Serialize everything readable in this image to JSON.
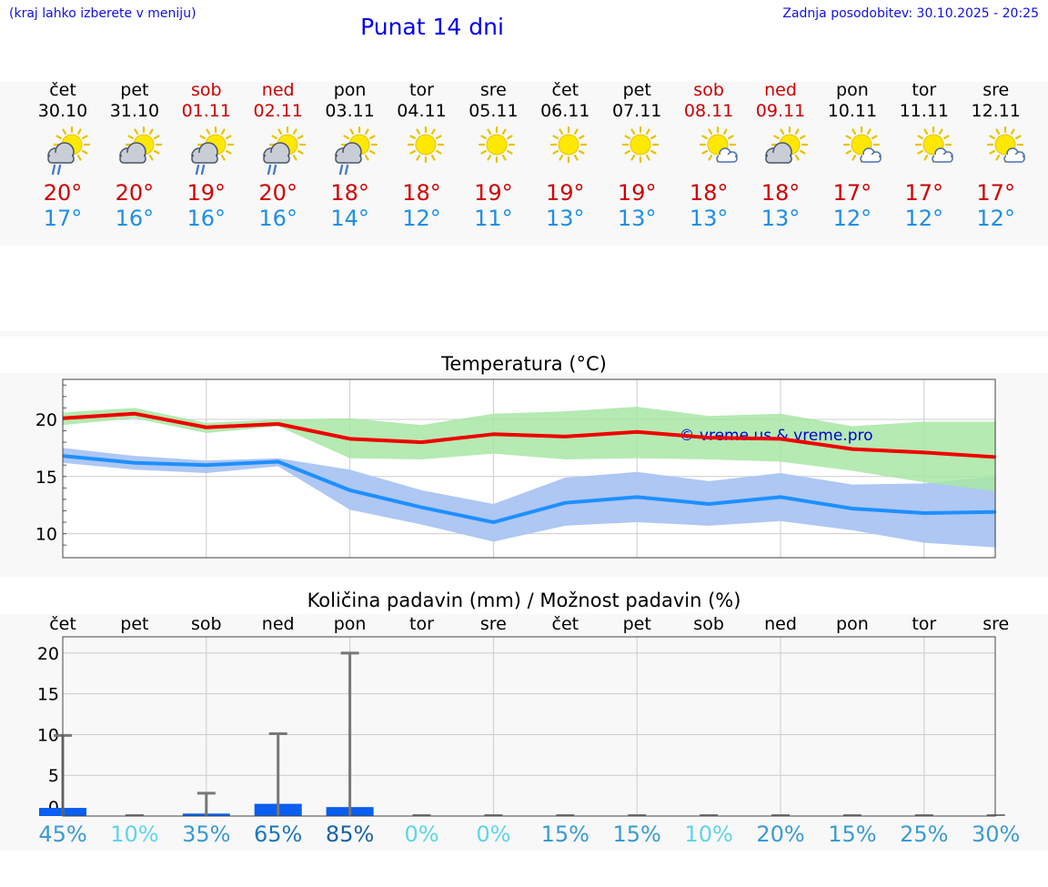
{
  "header": {
    "hint": "(kraj lahko izberete v meniju)",
    "title": "Punat 14 dni",
    "updated": "Zadnja posodobitev: 30.10.2025 - 20:25"
  },
  "colors": {
    "max": "#d00000",
    "min": "#1e8fe6",
    "weekend": "#cc0000",
    "rain_bar": "#0a5ef0",
    "max_band": "#a8e6a4",
    "min_band": "#aac4f2"
  },
  "forecast": [
    {
      "day": "čet",
      "date": "30.10",
      "weekend": false,
      "icon": "sun-cloud-rain-icon",
      "max": "20°",
      "min": "17°"
    },
    {
      "day": "pet",
      "date": "31.10",
      "weekend": false,
      "icon": "sun-cloud-icon",
      "max": "20°",
      "min": "16°"
    },
    {
      "day": "sob",
      "date": "01.11",
      "weekend": true,
      "icon": "sun-cloud-rain-icon",
      "max": "19°",
      "min": "16°"
    },
    {
      "day": "ned",
      "date": "02.11",
      "weekend": true,
      "icon": "sun-cloud-rain-icon",
      "max": "20°",
      "min": "16°"
    },
    {
      "day": "pon",
      "date": "03.11",
      "weekend": false,
      "icon": "sun-cloud-rain-icon",
      "max": "18°",
      "min": "14°"
    },
    {
      "day": "tor",
      "date": "04.11",
      "weekend": false,
      "icon": "sun-icon",
      "max": "18°",
      "min": "12°"
    },
    {
      "day": "sre",
      "date": "05.11",
      "weekend": false,
      "icon": "sun-icon",
      "max": "19°",
      "min": "11°"
    },
    {
      "day": "čet",
      "date": "06.11",
      "weekend": false,
      "icon": "sun-icon",
      "max": "19°",
      "min": "13°"
    },
    {
      "day": "pet",
      "date": "07.11",
      "weekend": false,
      "icon": "sun-icon",
      "max": "19°",
      "min": "13°"
    },
    {
      "day": "sob",
      "date": "08.11",
      "weekend": true,
      "icon": "sun-small-cloud-icon",
      "max": "18°",
      "min": "13°"
    },
    {
      "day": "ned",
      "date": "09.11",
      "weekend": true,
      "icon": "sun-cloud-icon",
      "max": "18°",
      "min": "13°"
    },
    {
      "day": "pon",
      "date": "10.11",
      "weekend": false,
      "icon": "sun-small-cloud-icon",
      "max": "17°",
      "min": "12°"
    },
    {
      "day": "tor",
      "date": "11.11",
      "weekend": false,
      "icon": "sun-small-cloud-icon",
      "max": "17°",
      "min": "12°"
    },
    {
      "day": "sre",
      "date": "12.11",
      "weekend": false,
      "icon": "sun-small-cloud-icon",
      "max": "17°",
      "min": "12°"
    }
  ],
  "chart_data": [
    {
      "type": "line",
      "title": "Temperatura (°C)",
      "watermark": "© vreme.us & vreme.pro",
      "x": [
        0,
        1,
        2,
        3,
        4,
        5,
        6,
        7,
        8,
        9,
        10,
        11,
        12,
        13
      ],
      "ylim": [
        7.9,
        23.5
      ],
      "yticks": [
        10,
        15,
        20
      ],
      "grid": true,
      "series": [
        {
          "name": "max",
          "color": "#ee0000",
          "values": [
            20.1,
            20.5,
            19.3,
            19.6,
            18.3,
            18.0,
            18.7,
            18.5,
            18.9,
            18.4,
            18.3,
            17.4,
            17.1,
            16.7
          ],
          "band_low": [
            19.5,
            20.1,
            18.8,
            19.4,
            16.6,
            16.5,
            17.0,
            16.5,
            16.6,
            16.5,
            16.3,
            15.5,
            14.5,
            13.7
          ],
          "band_high": [
            20.6,
            21.0,
            19.7,
            20.0,
            20.1,
            19.5,
            20.5,
            20.7,
            21.1,
            20.3,
            20.5,
            19.4,
            19.8,
            19.8
          ]
        },
        {
          "name": "min",
          "color": "#1e8fff",
          "values": [
            16.8,
            16.2,
            16.0,
            16.3,
            13.8,
            12.3,
            11.0,
            12.7,
            13.2,
            12.6,
            13.2,
            12.2,
            11.8,
            11.9
          ],
          "band_low": [
            16.2,
            15.6,
            15.3,
            15.9,
            12.1,
            10.8,
            9.3,
            10.7,
            11.0,
            10.7,
            11.1,
            10.3,
            9.2,
            8.8
          ],
          "band_high": [
            17.5,
            16.8,
            16.4,
            16.6,
            15.6,
            13.8,
            12.6,
            14.9,
            15.4,
            14.6,
            15.3,
            14.3,
            14.4,
            15.0
          ]
        }
      ]
    },
    {
      "type": "bar",
      "title": "Količina padavin (mm) / Možnost padavin (%)",
      "categories": [
        "čet",
        "pet",
        "sob",
        "ned",
        "pon",
        "tor",
        "sre",
        "čet",
        "pet",
        "sob",
        "ned",
        "pon",
        "tor",
        "sre"
      ],
      "values": [
        1.0,
        0,
        0.3,
        1.5,
        1.1,
        0,
        0,
        0,
        0,
        0,
        0,
        0,
        0,
        0
      ],
      "error_high": [
        9.9,
        0,
        2.8,
        10.1,
        20.0,
        0,
        0,
        0,
        0,
        0,
        0,
        0,
        0,
        0
      ],
      "chance": [
        "45%",
        "10%",
        "35%",
        "65%",
        "85%",
        "0%",
        "0%",
        "15%",
        "15%",
        "10%",
        "20%",
        "15%",
        "25%",
        "30%"
      ],
      "chance_colors": [
        "#3a9bd0",
        "#5ed5e8",
        "#3a9bd0",
        "#1e78b8",
        "#1a63a8",
        "#5ed5e8",
        "#5ed5e8",
        "#3a9bd0",
        "#3a9bd0",
        "#5ed5e8",
        "#3a9bd0",
        "#3a9bd0",
        "#3a9bd0",
        "#3a9bd0"
      ],
      "ylim": [
        0,
        22
      ],
      "yticks": [
        0,
        5,
        10,
        15,
        20
      ],
      "ytick_labels": [
        "0",
        "5",
        "10",
        "15",
        "20"
      ],
      "grid": true
    }
  ]
}
